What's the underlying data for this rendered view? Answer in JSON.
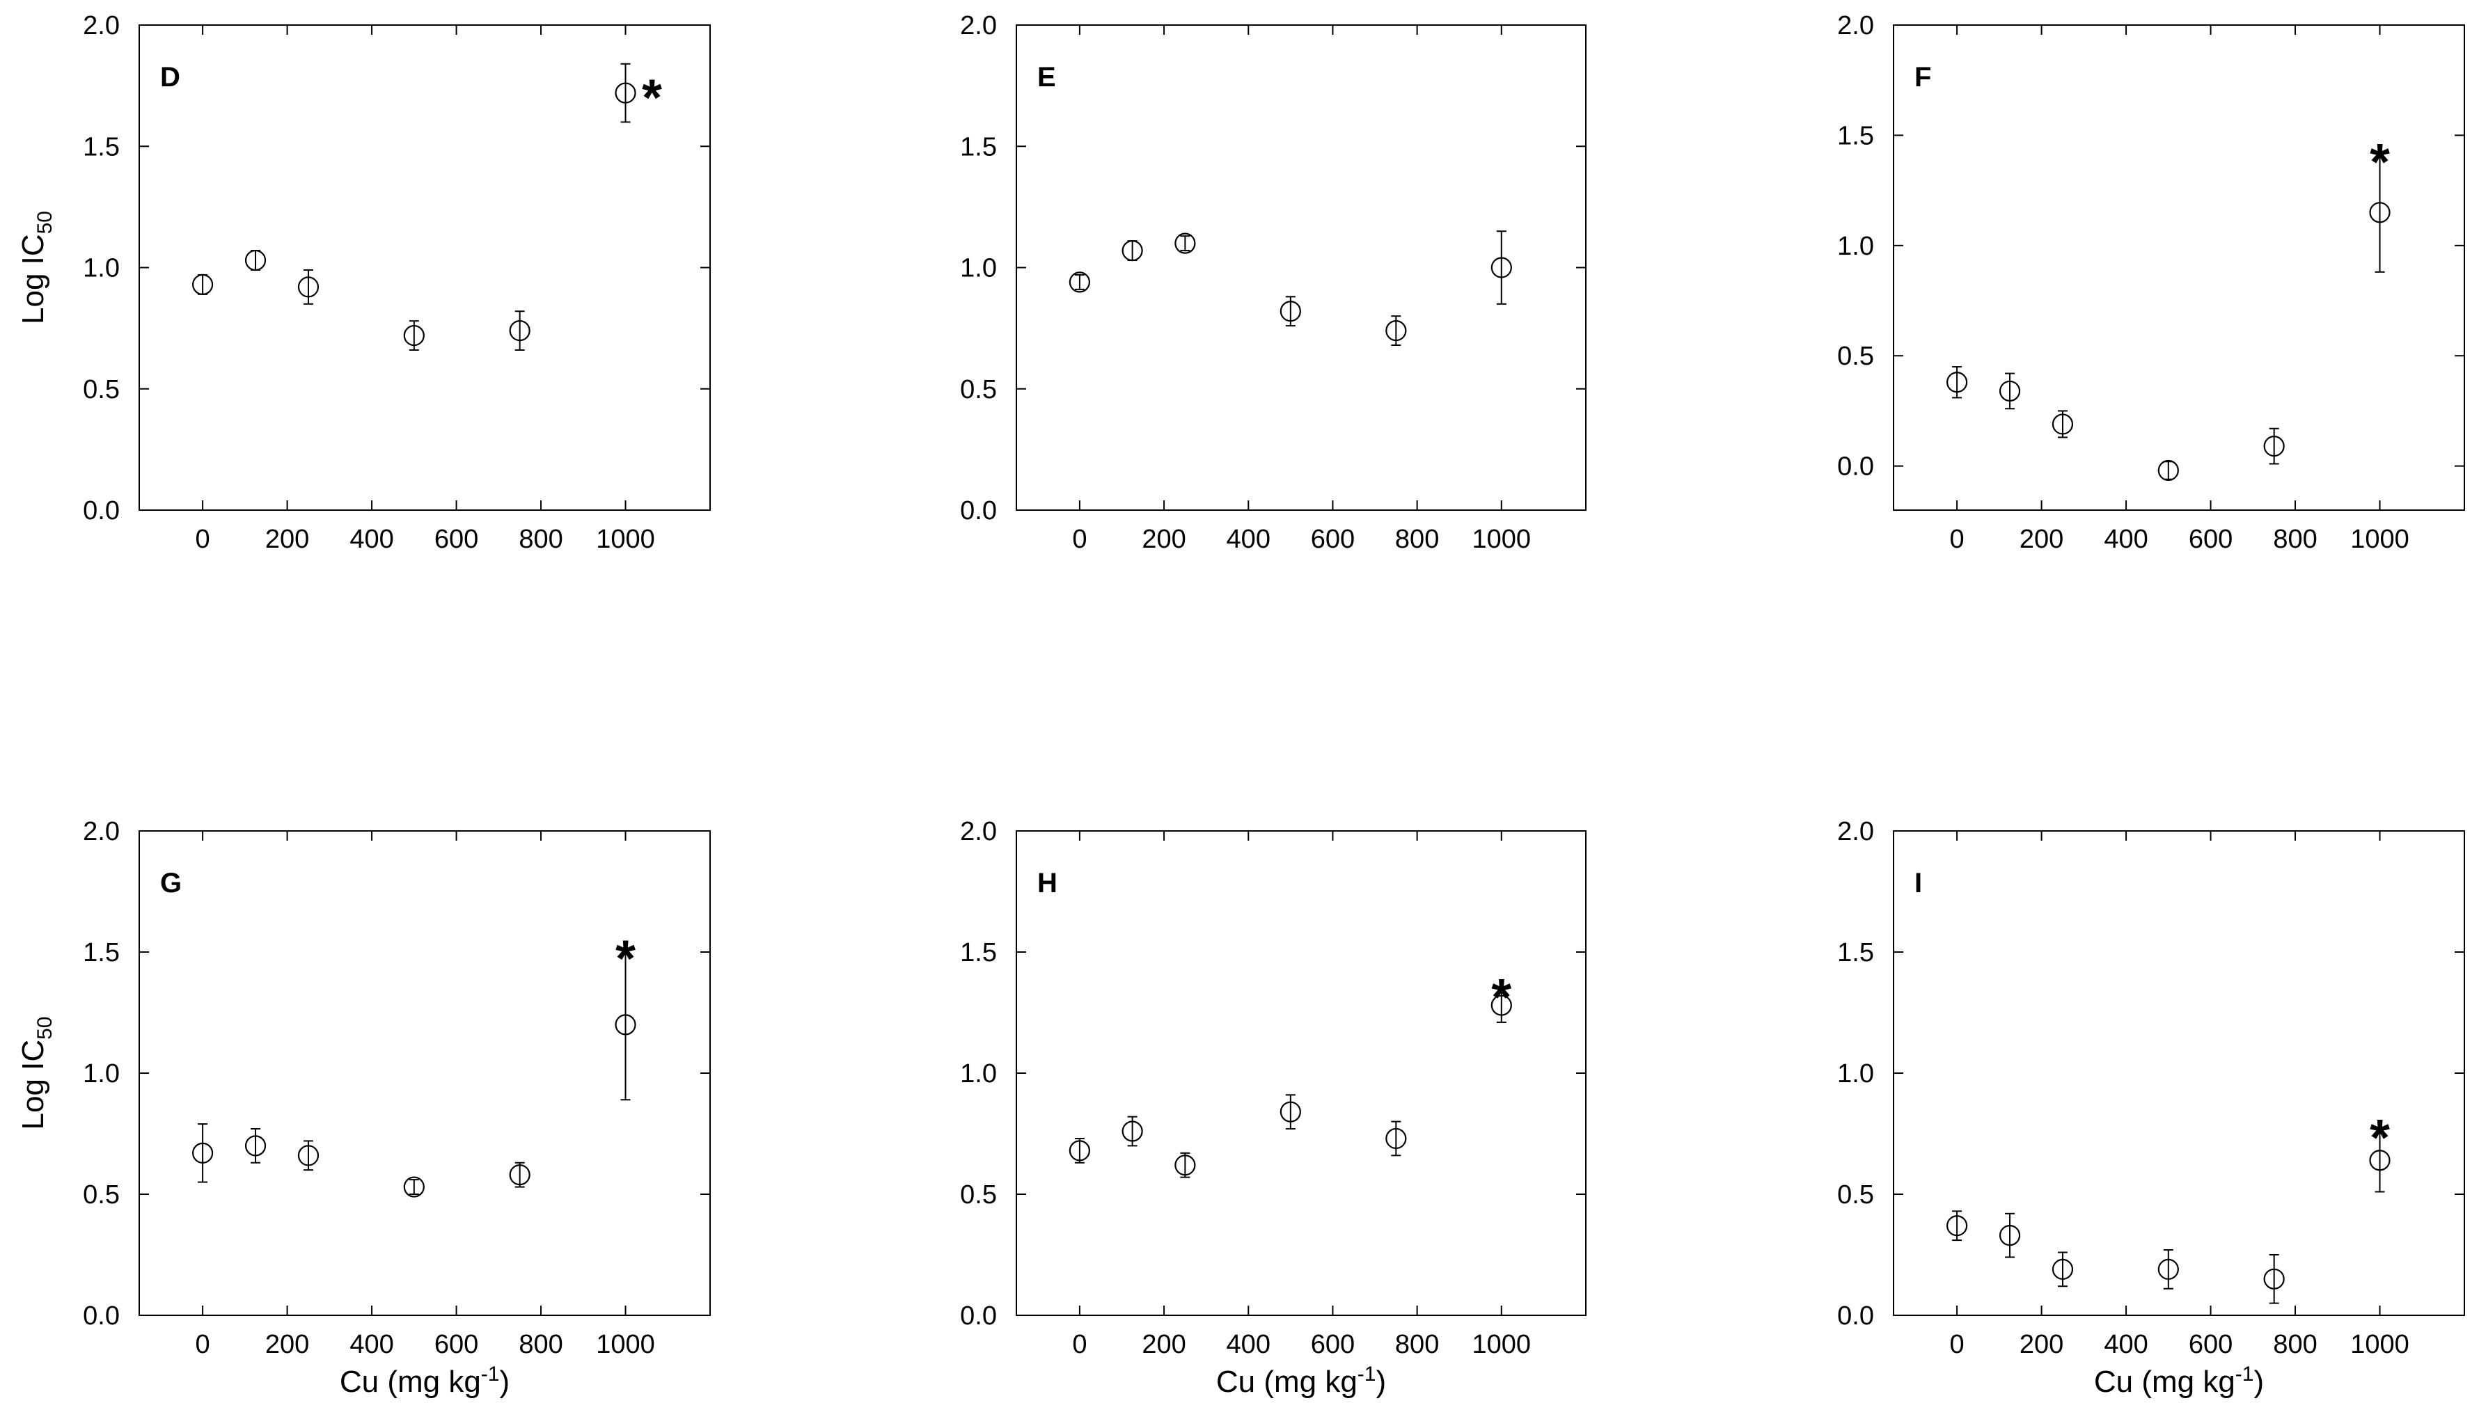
{
  "chart_data": [
    {
      "type": "scatter",
      "panel_label": "D",
      "ylabel": "Log IC50",
      "xlabel": "",
      "xlim": [
        -150,
        1200
      ],
      "ylim": [
        0,
        2
      ],
      "xticks": [
        0,
        200,
        400,
        600,
        800,
        1000
      ],
      "yticks": [
        0.0,
        0.5,
        1.0,
        1.5,
        2.0
      ],
      "x": [
        0,
        125,
        250,
        500,
        750,
        1000
      ],
      "y": [
        0.93,
        1.03,
        0.92,
        0.72,
        0.74,
        1.72
      ],
      "err": [
        0.04,
        0.04,
        0.07,
        0.06,
        0.08,
        0.12
      ],
      "significant": [
        1000
      ],
      "grid": false
    },
    {
      "type": "scatter",
      "panel_label": "E",
      "ylabel": "",
      "xlabel": "",
      "xlim": [
        -150,
        1200
      ],
      "ylim": [
        0,
        2
      ],
      "xticks": [
        0,
        200,
        400,
        600,
        800,
        1000
      ],
      "yticks": [
        0.0,
        0.5,
        1.0,
        1.5,
        2.0
      ],
      "x": [
        0,
        125,
        250,
        500,
        750,
        1000
      ],
      "y": [
        0.94,
        1.07,
        1.1,
        0.82,
        0.74,
        1.0
      ],
      "err": [
        0.03,
        0.04,
        0.03,
        0.06,
        0.06,
        0.15
      ],
      "significant": [],
      "grid": false
    },
    {
      "type": "scatter",
      "panel_label": "F",
      "ylabel": "",
      "xlabel": "",
      "xlim": [
        -150,
        1200
      ],
      "ylim": [
        -0.2,
        2
      ],
      "xticks": [
        0,
        200,
        400,
        600,
        800,
        1000
      ],
      "yticks": [
        0.0,
        0.5,
        1.0,
        1.5,
        2.0
      ],
      "x": [
        0,
        125,
        250,
        500,
        750,
        1000
      ],
      "y": [
        0.38,
        0.34,
        0.19,
        -0.02,
        0.09,
        1.15
      ],
      "err": [
        0.07,
        0.08,
        0.06,
        0.04,
        0.08,
        0.27
      ],
      "significant": [
        1000
      ],
      "grid": false
    },
    {
      "type": "scatter",
      "panel_label": "G",
      "ylabel": "Log IC50",
      "xlabel": "Cu (mg kg-1)",
      "xlim": [
        -150,
        1200
      ],
      "ylim": [
        0,
        2
      ],
      "xticks": [
        0,
        200,
        400,
        600,
        800,
        1000
      ],
      "yticks": [
        0.0,
        0.5,
        1.0,
        1.5,
        2.0
      ],
      "x": [
        0,
        125,
        250,
        500,
        750,
        1000
      ],
      "y": [
        0.67,
        0.7,
        0.66,
        0.53,
        0.58,
        1.2
      ],
      "err": [
        0.12,
        0.07,
        0.06,
        0.03,
        0.05,
        0.31
      ],
      "significant": [
        1000
      ],
      "grid": false
    },
    {
      "type": "scatter",
      "panel_label": "H",
      "ylabel": "",
      "xlabel": "Cu (mg kg-1)",
      "xlim": [
        -150,
        1200
      ],
      "ylim": [
        0,
        2
      ],
      "xticks": [
        0,
        200,
        400,
        600,
        800,
        1000
      ],
      "yticks": [
        0.0,
        0.5,
        1.0,
        1.5,
        2.0
      ],
      "x": [
        0,
        125,
        250,
        500,
        750,
        1000
      ],
      "y": [
        0.68,
        0.76,
        0.62,
        0.84,
        0.73,
        1.28
      ],
      "err": [
        0.05,
        0.06,
        0.05,
        0.07,
        0.07,
        0.07
      ],
      "significant": [
        1000
      ],
      "grid": false
    },
    {
      "type": "scatter",
      "panel_label": "I",
      "ylabel": "",
      "xlabel": "Cu (mg kg-1)",
      "xlim": [
        -150,
        1200
      ],
      "ylim": [
        0,
        2
      ],
      "xticks": [
        0,
        200,
        400,
        600,
        800,
        1000
      ],
      "yticks": [
        0.0,
        0.5,
        1.0,
        1.5,
        2.0
      ],
      "x": [
        0,
        125,
        250,
        500,
        750,
        1000
      ],
      "y": [
        0.37,
        0.33,
        0.19,
        0.19,
        0.15,
        0.64
      ],
      "err": [
        0.06,
        0.09,
        0.07,
        0.08,
        0.1,
        0.13
      ],
      "significant": [
        1000
      ],
      "grid": false
    }
  ],
  "labels": {
    "ylabel_main": "Log IC",
    "ylabel_sub": "50",
    "xlabel_main": "Cu (mg kg",
    "xlabel_sup": "-1",
    "xlabel_close": ")",
    "significance_marker": "*"
  },
  "style": {
    "axis_color": "#000000",
    "marker_stroke": "#000000",
    "marker_fill": "#ffffff"
  }
}
